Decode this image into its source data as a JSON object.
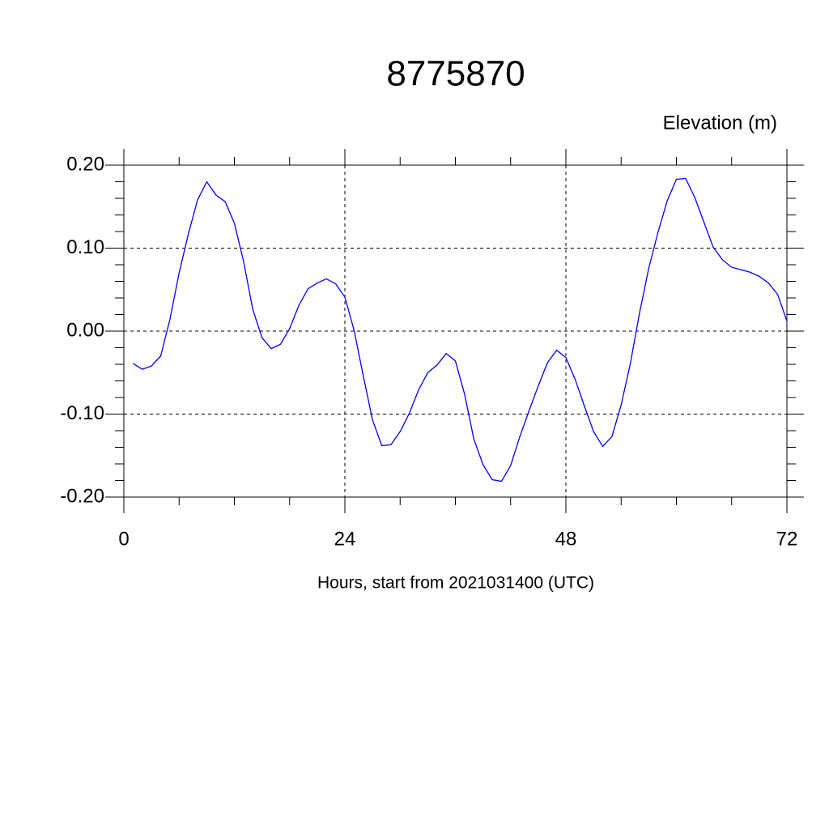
{
  "chart_data": {
    "type": "line",
    "title": "8775870",
    "y_label": "Elevation (m)",
    "x_label": "Hours, start from 2021031400 (UTC)",
    "x": [
      1,
      2,
      3,
      4,
      5,
      6,
      7,
      8,
      9,
      10,
      11,
      12,
      13,
      14,
      15,
      16,
      17,
      18,
      19,
      20,
      21,
      22,
      23,
      24,
      25,
      26,
      27,
      28,
      29,
      30,
      31,
      32,
      33,
      34,
      35,
      36,
      37,
      38,
      39,
      40,
      41,
      42,
      43,
      44,
      45,
      46,
      47,
      48,
      49,
      50,
      51,
      52,
      53,
      54,
      55,
      56,
      57,
      58,
      59,
      60,
      61,
      62,
      63,
      64,
      65,
      66,
      67,
      68,
      69,
      70,
      71,
      72
    ],
    "series": [
      {
        "color": "#0000ff",
        "values": [
          -0.039,
          -0.046,
          -0.042,
          -0.03,
          0.014,
          0.07,
          0.117,
          0.158,
          0.18,
          0.164,
          0.156,
          0.13,
          0.084,
          0.026,
          -0.008,
          -0.021,
          -0.016,
          0.003,
          0.031,
          0.051,
          0.058,
          0.063,
          0.057,
          0.041,
          0.001,
          -0.054,
          -0.107,
          -0.138,
          -0.137,
          -0.121,
          -0.099,
          -0.071,
          -0.05,
          -0.041,
          -0.027,
          -0.036,
          -0.076,
          -0.13,
          -0.161,
          -0.179,
          -0.181,
          -0.162,
          -0.127,
          -0.096,
          -0.066,
          -0.038,
          -0.023,
          -0.032,
          -0.058,
          -0.09,
          -0.121,
          -0.139,
          -0.127,
          -0.089,
          -0.039,
          0.022,
          0.076,
          0.119,
          0.157,
          0.183,
          0.184,
          0.161,
          0.131,
          0.101,
          0.086,
          0.077,
          0.074,
          0.071,
          0.066,
          0.058,
          0.044,
          0.012
        ]
      }
    ],
    "xlim": [
      0,
      72
    ],
    "xticks": [
      0,
      24,
      48,
      72
    ],
    "ylim": [
      -0.2,
      0.2
    ],
    "yticks": [
      {
        "value": -0.2,
        "label": "-0.20"
      },
      {
        "value": -0.1,
        "label": "-0.10"
      },
      {
        "value": 0,
        "label": "0.00"
      },
      {
        "value": 0.1,
        "label": "0.10"
      },
      {
        "value": 0.2,
        "label": "0.20"
      }
    ],
    "grid": true
  }
}
